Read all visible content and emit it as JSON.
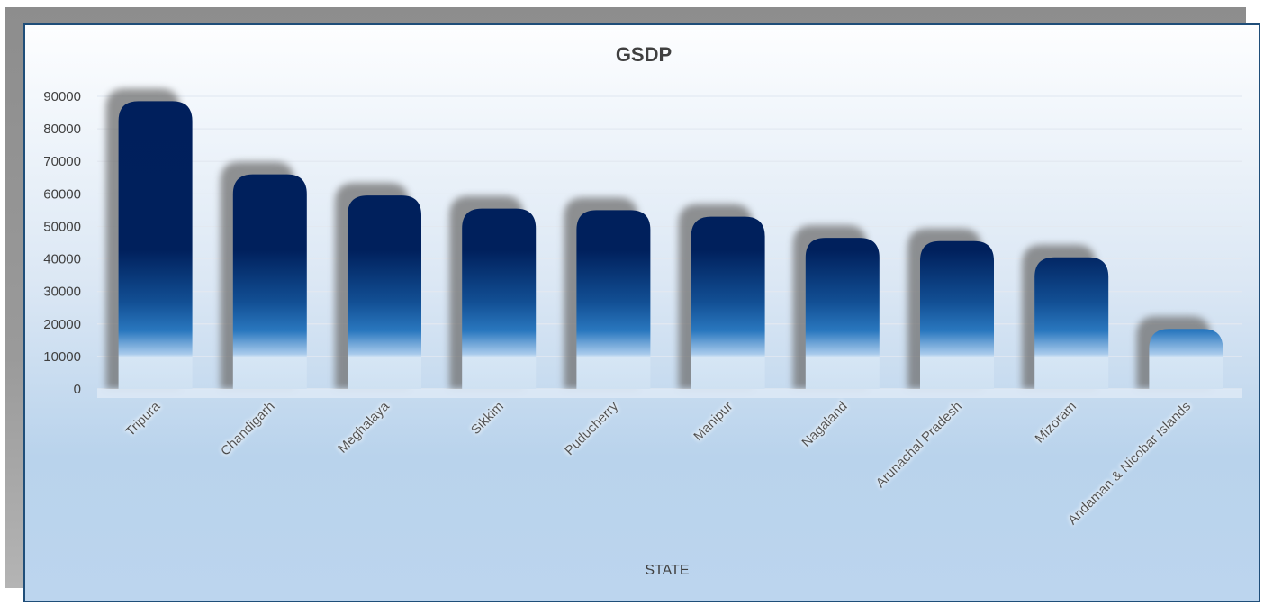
{
  "chart_data": {
    "type": "bar",
    "title": "GSDP",
    "xlabel": "STATE",
    "ylabel": "",
    "ylim": [
      0,
      90000
    ],
    "yticks": [
      0,
      10000,
      20000,
      30000,
      40000,
      50000,
      60000,
      70000,
      80000,
      90000
    ],
    "categories": [
      "Tripura",
      "Chandigarh",
      "Meghalaya",
      "Sikkim",
      "Puducherry",
      "Manipur",
      "Nagaland",
      "Arunachal Pradesh",
      "Mizoram",
      "Andaman & Nicobar Islands"
    ],
    "values": [
      88500,
      66000,
      59500,
      55500,
      55000,
      53000,
      46500,
      45500,
      40500,
      18500
    ],
    "grid": true,
    "legend": "none",
    "colors": {
      "bar_top": "#001f5c",
      "bar_mid": "#1f6fb6",
      "bar_bottom": "#d6e6f5",
      "shadow": "#6f6f6f"
    }
  }
}
